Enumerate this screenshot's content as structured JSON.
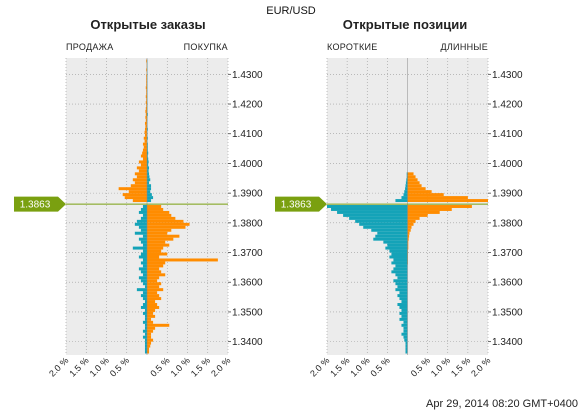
{
  "header": {
    "pair": "EUR/USD"
  },
  "footer": {
    "timestamp": "Apr 29, 2014 08:20 GMT+0400"
  },
  "colors": {
    "orange": "#ff8c00",
    "teal": "#14a3b8",
    "marker": "#7aa010",
    "grid_bg": "#ececec"
  },
  "chart_data": [
    {
      "type": "bar",
      "title": "Открытые заказы",
      "left_label": "ПРОДАЖА",
      "right_label": "ПОКУПКА",
      "price_ylim": [
        1.3355,
        1.4355
      ],
      "price_ticks": [
        "1.3400",
        "1.3500",
        "1.3600",
        "1.3700",
        "1.3800",
        "1.3900",
        "1.4000",
        "1.4100",
        "1.4200",
        "1.4300"
      ],
      "price_tick_values": [
        1.34,
        1.35,
        1.36,
        1.37,
        1.38,
        1.39,
        1.4,
        1.41,
        1.42,
        1.43
      ],
      "xlim": [
        -2.0,
        2.0
      ],
      "x_ticks": [
        "2.0 %",
        "1.5 %",
        "1.0 %",
        "0.5 %",
        "0.5 %",
        "1.0 %",
        "1.5 %",
        "2.0 %"
      ],
      "current_price": "1.3863",
      "current_price_value": 1.3863,
      "series": [
        {
          "name": "sell_above",
          "color": "orange",
          "side": "left",
          "price_from": 1.387,
          "price_to": 1.435,
          "values": [
            0.35,
            0.55,
            0.6,
            0.45,
            0.7,
            0.4,
            0.3,
            0.35,
            0.25,
            0.3,
            0.2,
            0.25,
            0.15,
            0.2,
            0.1,
            0.15,
            0.12,
            0.1,
            0.08,
            0.1,
            0.06,
            0.08,
            0.05,
            0.06,
            0.05,
            0.04,
            0.05,
            0.03,
            0.04,
            0.03,
            0.04,
            0.03,
            0.02,
            0.03,
            0.02,
            0.03,
            0.02,
            0.02,
            0.03,
            0.02,
            0.02,
            0.02,
            0.02,
            0.01,
            0.02,
            0.01,
            0.01,
            0.02
          ]
        },
        {
          "name": "buy_above",
          "color": "teal",
          "side": "right",
          "price_from": 1.387,
          "price_to": 1.435,
          "values": [
            0.1,
            0.15,
            0.12,
            0.08,
            0.1,
            0.1,
            0.05,
            0.08,
            0.06,
            0.05,
            0.04,
            0.05,
            0.03,
            0.04,
            0.03,
            0.02,
            0.03,
            0.02,
            0.02,
            0.02,
            0.01,
            0.02,
            0.01,
            0.01,
            0.02,
            0.01,
            0.01,
            0.01,
            0.01,
            0.02,
            0.01,
            0.01,
            0.01,
            0.01,
            0.01,
            0.01,
            0.01,
            0.01,
            0.01,
            0.01,
            0.01,
            0.01,
            0.01,
            0.01,
            0.01,
            0.01,
            0.01,
            0.01
          ]
        },
        {
          "name": "buy_below",
          "color": "orange",
          "side": "right",
          "price_from": 1.386,
          "price_to": 1.336,
          "values": [
            0.35,
            0.4,
            0.55,
            0.6,
            0.7,
            0.9,
            1.05,
            0.95,
            0.6,
            0.5,
            0.8,
            0.65,
            0.45,
            0.55,
            0.4,
            0.35,
            0.5,
            0.3,
            1.75,
            0.45,
            0.4,
            0.3,
            0.35,
            0.45,
            0.3,
            0.25,
            0.35,
            0.3,
            0.4,
            0.25,
            0.3,
            0.35,
            0.2,
            0.25,
            0.3,
            0.2,
            0.15,
            0.2,
            0.1,
            0.15,
            0.55,
            0.2,
            0.15,
            0.1,
            0.1,
            0.15,
            0.1,
            0.08,
            0.05,
            0.05
          ]
        },
        {
          "name": "sell_below",
          "color": "teal",
          "side": "left",
          "price_from": 1.386,
          "price_to": 1.336,
          "values": [
            0.1,
            0.15,
            0.2,
            0.1,
            0.15,
            0.25,
            0.3,
            0.2,
            0.15,
            0.3,
            0.1,
            0.2,
            0.15,
            0.1,
            0.35,
            0.1,
            0.15,
            0.2,
            0.1,
            0.15,
            0.1,
            0.2,
            0.15,
            0.1,
            0.2,
            0.15,
            0.1,
            0.05,
            0.25,
            0.1,
            0.15,
            0.1,
            0.05,
            0.1,
            0.15,
            0.05,
            0.1,
            0.05,
            0.05,
            0.1,
            0.05,
            0.05,
            0.1,
            0.05,
            0.1,
            0.05,
            0.05,
            0.05,
            0.05,
            0.05
          ]
        }
      ]
    },
    {
      "type": "bar",
      "title": "Открытые позиции",
      "left_label": "КОРОТКИЕ",
      "right_label": "ДЛИННЫЕ",
      "price_ylim": [
        1.3355,
        1.4355
      ],
      "price_ticks": [
        "1.3400",
        "1.3500",
        "1.3600",
        "1.3700",
        "1.3800",
        "1.3900",
        "1.4000",
        "1.4100",
        "1.4200",
        "1.4300"
      ],
      "price_tick_values": [
        1.34,
        1.35,
        1.36,
        1.37,
        1.38,
        1.39,
        1.4,
        1.41,
        1.42,
        1.43
      ],
      "xlim": [
        -2.0,
        2.0
      ],
      "x_ticks": [
        "2.0 %",
        "1.5 %",
        "1.0 %",
        "0.5 %",
        "0.5 %",
        "1.0 %",
        "1.5 %",
        "2.0 %"
      ],
      "current_price": "1.3863",
      "current_price_value": 1.3863,
      "series": [
        {
          "name": "short_above",
          "color": "teal",
          "side": "left",
          "price_from": 1.387,
          "price_to": 1.397,
          "values": [
            0.3,
            0.15,
            0.1,
            0.08,
            0.06,
            0.05,
            0.04,
            0.03,
            0.02,
            0.02
          ]
        },
        {
          "name": "long_above",
          "color": "orange",
          "side": "right",
          "price_from": 1.387,
          "price_to": 1.397,
          "values": [
            2.0,
            1.5,
            0.9,
            0.6,
            0.45,
            0.35,
            0.3,
            0.25,
            0.2,
            0.15
          ]
        },
        {
          "name": "short_below",
          "color": "teal",
          "side": "left",
          "price_from": 1.386,
          "price_to": 1.336,
          "values": [
            2.0,
            1.9,
            1.75,
            1.6,
            1.45,
            1.3,
            1.2,
            1.1,
            0.9,
            0.75,
            0.8,
            0.85,
            0.6,
            0.5,
            0.55,
            0.45,
            0.4,
            0.45,
            0.35,
            0.4,
            0.3,
            0.35,
            0.4,
            0.3,
            0.25,
            0.35,
            0.3,
            0.25,
            0.3,
            0.2,
            0.25,
            0.2,
            0.15,
            0.25,
            0.2,
            0.15,
            0.2,
            0.15,
            0.2,
            0.1,
            0.15,
            0.1,
            0.1,
            0.15,
            0.1,
            0.08,
            0.05,
            0.05,
            0.05,
            0.05
          ]
        },
        {
          "name": "long_below",
          "color": "orange",
          "side": "right",
          "price_from": 1.386,
          "price_to": 1.336,
          "values": [
            1.6,
            1.1,
            0.8,
            0.5,
            0.3,
            0.2,
            0.15,
            0.1,
            0.08,
            0.05,
            0.04,
            0.03,
            0.02,
            0.02,
            0.02,
            0.01,
            0.01,
            0.01,
            0.01,
            0.01,
            0,
            0,
            0,
            0,
            0,
            0,
            0,
            0,
            0,
            0,
            0,
            0,
            0,
            0,
            0,
            0,
            0,
            0,
            0,
            0,
            0,
            0,
            0,
            0,
            0,
            0,
            0,
            0,
            0,
            0
          ]
        }
      ]
    }
  ]
}
